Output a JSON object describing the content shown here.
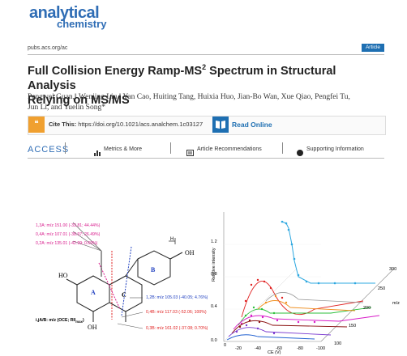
{
  "journal": {
    "logo_line1": "analytical",
    "logo_line2": "chemistry",
    "url": "pubs.acs.org/ac",
    "badge": "Article"
  },
  "article": {
    "title_main": "Full Collision Energy Ramp-MS",
    "title_sup": "2",
    "title_rest": " Spectrum in Structural Analysis",
    "title_line2": "Relying on MS/MS",
    "authors_line1": "Pengwei Guan,‖ Wenjing Liu,‖ Yan Cao, Huiting Tang, Huixia Huo, Jian-Bo Wan, Xue Qiao, Pengfei Tu,",
    "authors_line2": "Jun Li, and Yuelin Song*"
  },
  "cite": {
    "label": "Cite This:",
    "doi": "https://doi.org/10.1021/acs.analchem.1c03127",
    "read_online": "Read Online"
  },
  "access": {
    "label": "ACCESS",
    "tabs": [
      {
        "icon": "bar-chart-icon",
        "label": "Metrics & More"
      },
      {
        "icon": "article-icon",
        "label": "Article Recommendations"
      },
      {
        "icon": "supporting-info-icon",
        "label": "Supporting Information"
      }
    ]
  },
  "structure": {
    "labels": [
      {
        "text": "1,3A: m/z 151.00 (-33.81; 44.44%)",
        "color": "#d81b8c"
      },
      {
        "text": "0,4A: m/z 107.01 (-38.97; 26.49%)",
        "color": "#d81b8c"
      },
      {
        "text": "0,2A: m/z 135.01 (-42.99; 0.69%)",
        "color": "#d81b8c"
      },
      {
        "text": "1,2B: m/z 105.03 (-40.05; 4.76%)",
        "color": "#2040c0"
      },
      {
        "text": "0,4B: m/z 117.03 (-52.06; 100%)",
        "color": "#e02020"
      },
      {
        "text": "0,3B: m/z 161.02 (-37.08; 0.70%)",
        "color": "#e02020"
      },
      {
        "text": "i,jA/B: m/z (OCE; RII",
        "color": "#222"
      },
      {
        "text": "max",
        "color": "#222"
      },
      {
        "text": ")",
        "color": "#222"
      }
    ],
    "ring_a": "A",
    "ring_b": "B",
    "ring_c": "C",
    "oh_top": "OH",
    "ho_left": "HO",
    "oh_bottom": "OH",
    "h_top": "H"
  },
  "plot3d": {
    "z_label": "Relative intensity",
    "z_ticks": [
      "1.2",
      "0.8",
      "0.4",
      "0.0"
    ],
    "x_label": "CE (V)",
    "x_ticks": [
      "0",
      "-20",
      "-40",
      "-60",
      "-80",
      "-100"
    ],
    "y_label": "m/z",
    "y_ticks": [
      "300",
      "250",
      "200",
      "150",
      "100"
    ]
  }
}
